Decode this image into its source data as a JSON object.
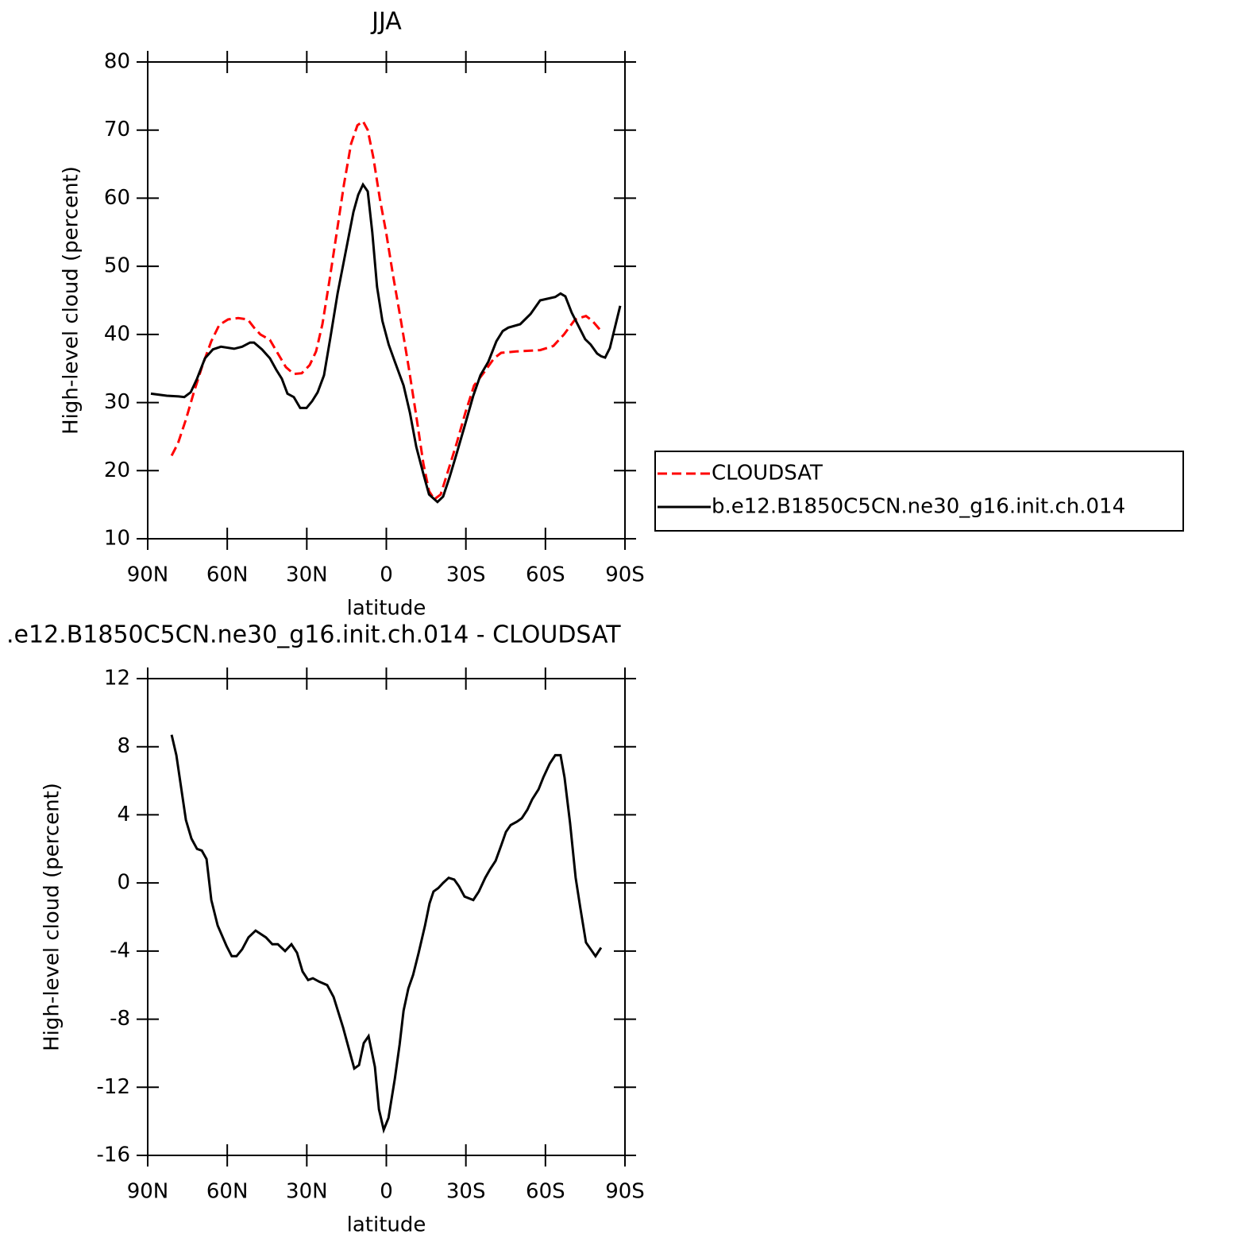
{
  "chart_data": [
    {
      "type": "line",
      "title": "JJA",
      "x_label": "latitude",
      "y_label": "High-level cloud (percent)",
      "xlim": [
        90,
        -90
      ],
      "xticks": [
        {
          "value": 90,
          "label": "90N"
        },
        {
          "value": 60,
          "label": "60N"
        },
        {
          "value": 30,
          "label": "30N"
        },
        0,
        {
          "value": -30,
          "label": "30S"
        },
        {
          "value": -60,
          "label": "60S"
        },
        {
          "value": -90,
          "label": "90S"
        }
      ],
      "ylim": [
        10,
        80
      ],
      "yticks": [
        10,
        20,
        30,
        40,
        50,
        60,
        70,
        80
      ],
      "legend": "right",
      "series": [
        {
          "name": "CLOUDSAT",
          "color": "#ff0000",
          "linestyle": "dashed",
          "x": [
            81.0,
            78.6,
            75.6,
            72.6,
            69.3,
            66.0,
            63.0,
            59.7,
            55.9,
            52.3,
            49.9,
            47.5,
            43.9,
            40.9,
            37.9,
            34.9,
            31.9,
            28.9,
            26.5,
            24.1,
            21.4,
            18.7,
            16.0,
            13.3,
            10.9,
            8.8,
            7.0,
            4.9,
            2.5,
            0.1,
            -2.6,
            -5.5,
            -8.5,
            -11.3,
            -14.0,
            -16.1,
            -18.1,
            -20.5,
            -22.9,
            -26.5,
            -29.8,
            -33.1,
            -37.0,
            -40.6,
            -43.3,
            -49.0,
            -58.0,
            -63.0,
            -67.0,
            -71.2,
            -75.3,
            -77.7,
            -81.0
          ],
          "values": [
            22.2,
            24,
            27.5,
            31.5,
            35.5,
            39,
            41.4,
            42.2,
            42.4,
            42.2,
            41,
            40,
            39.2,
            37.2,
            35.2,
            34.2,
            34.3,
            35.5,
            37.5,
            41.5,
            48,
            55,
            62,
            68,
            70.7,
            71.3,
            70,
            66,
            60,
            55,
            48.5,
            42,
            35,
            28,
            21,
            17,
            15.8,
            16.5,
            19.5,
            24,
            28.5,
            32.5,
            34.5,
            36.5,
            37.3,
            37.5,
            37.7,
            38.3,
            40,
            42.2,
            42.7,
            42,
            40.5
          ]
        },
        {
          "name": "b.e12.B1850C5CN.ne30_g16.init.ch.014",
          "color": "#000000",
          "linestyle": "solid",
          "x": [
            88.8,
            82.8,
            78.3,
            76.2,
            73.8,
            71.4,
            68.4,
            65.4,
            62.4,
            57.4,
            54.4,
            51.4,
            49.9,
            46.9,
            43.9,
            41.5,
            39.4,
            37.3,
            34.9,
            32.5,
            30.1,
            28.0,
            25.9,
            23.5,
            21.1,
            18.4,
            15.4,
            12.4,
            10.6,
            8.8,
            7.0,
            5.3,
            3.5,
            1.5,
            -0.9,
            -3.2,
            -6.5,
            -8.9,
            -11.3,
            -14.0,
            -16.1,
            -19.3,
            -21.4,
            -23.8,
            -26.5,
            -29.5,
            -32.8,
            -35.5,
            -38.5,
            -41.5,
            -43.9,
            -46.0,
            -50.5,
            -54.4,
            -58.0,
            -63.7,
            -65.7,
            -67.5,
            -69.9,
            -75.0,
            -77.1,
            -79.5,
            -81.0,
            -82.5,
            -84.3,
            -88.2
          ],
          "values": [
            31.3,
            31.0,
            30.9,
            30.8,
            31.5,
            33.5,
            36.5,
            37.8,
            38.2,
            37.9,
            38.2,
            38.8,
            38.8,
            37.8,
            36.5,
            34.8,
            33.5,
            31.3,
            30.8,
            29.2,
            29.2,
            30.2,
            31.5,
            34,
            39.5,
            46,
            52,
            58,
            60.5,
            62,
            61,
            55,
            47,
            42,
            38.5,
            36,
            32.5,
            28.5,
            23.5,
            19.5,
            16.5,
            15.4,
            16.2,
            19,
            22.5,
            26.5,
            31,
            34,
            36,
            39,
            40.5,
            41,
            41.5,
            43,
            45,
            45.5,
            46,
            45.6,
            43.2,
            39.3,
            38.5,
            37.2,
            36.8,
            36.6,
            38,
            44.2
          ]
        }
      ]
    },
    {
      "type": "line",
      "title": ".e12.B1850C5CN.ne30_g16.init.ch.014 - CLOUDSAT",
      "x_label": "latitude",
      "y_label": "High-level cloud (percent)",
      "xlim": [
        90,
        -90
      ],
      "xticks": [
        {
          "value": 90,
          "label": "90N"
        },
        {
          "value": 60,
          "label": "60N"
        },
        {
          "value": 30,
          "label": "30N"
        },
        0,
        {
          "value": -30,
          "label": "30S"
        },
        {
          "value": -60,
          "label": "60S"
        },
        {
          "value": -90,
          "label": "90S"
        }
      ],
      "ylim": [
        -16,
        12
      ],
      "yticks": [
        -16,
        -12,
        -8,
        -4,
        0,
        4,
        8,
        12
      ],
      "series": [
        {
          "color": "#000000",
          "linestyle": "solid",
          "x": [
            81.0,
            79.2,
            75.6,
            73.5,
            71.4,
            69.6,
            67.8,
            66.0,
            63.6,
            60.3,
            58.3,
            56.5,
            54.4,
            52.0,
            49.3,
            45.4,
            43.0,
            40.9,
            38.2,
            35.8,
            33.7,
            31.6,
            29.5,
            27.7,
            25.3,
            22.3,
            19.9,
            16.3,
            12.1,
            10.3,
            8.5,
            6.7,
            4.3,
            2.8,
            1.0,
            -0.8,
            -3.2,
            -5.0,
            -6.5,
            -8.3,
            -10.1,
            -12.2,
            -14.6,
            -16.3,
            -17.8,
            -19.6,
            -21.4,
            -23.5,
            -25.6,
            -27.4,
            -29.5,
            -32.8,
            -34.9,
            -37.3,
            -39.1,
            -41.2,
            -43.3,
            -45.1,
            -46.9,
            -49.3,
            -51.1,
            -53.2,
            -55.0,
            -57.4,
            -59.2,
            -61.6,
            -63.7,
            -65.7,
            -67.2,
            -69.3,
            -71.4,
            -73.2,
            -75.3,
            -77.1,
            -78.9,
            -81.0
          ],
          "values": [
            8.7,
            7.5,
            3.7,
            2.6,
            2.0,
            1.9,
            1.4,
            -1.0,
            -2.5,
            -3.7,
            -4.3,
            -4.3,
            -3.9,
            -3.2,
            -2.8,
            -3.2,
            -3.6,
            -3.6,
            -4.0,
            -3.6,
            -4.1,
            -5.2,
            -5.7,
            -5.6,
            -5.8,
            -6.0,
            -6.7,
            -8.5,
            -10.9,
            -10.7,
            -9.4,
            -9.0,
            -10.8,
            -13.3,
            -14.5,
            -13.8,
            -11.5,
            -9.5,
            -7.5,
            -6.2,
            -5.4,
            -4.1,
            -2.5,
            -1.2,
            -0.5,
            -0.3,
            0.0,
            0.3,
            0.2,
            -0.2,
            -0.8,
            -1.0,
            -0.5,
            0.3,
            0.8,
            1.3,
            2.2,
            3.0,
            3.4,
            3.6,
            3.8,
            4.3,
            4.9,
            5.5,
            6.2,
            7.0,
            7.5,
            7.5,
            6.2,
            3.5,
            0.3,
            -1.5,
            -3.5,
            -3.9,
            -4.3,
            -3.8
          ]
        }
      ]
    }
  ]
}
